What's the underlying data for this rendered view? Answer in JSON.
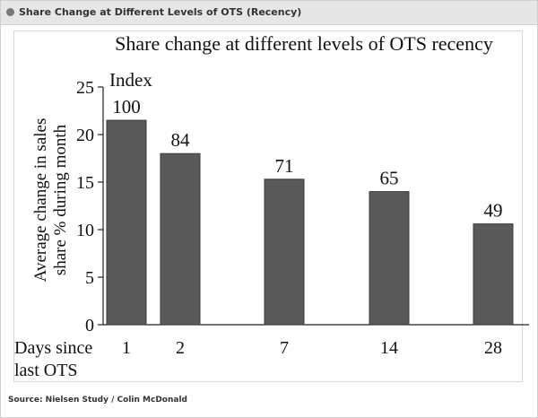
{
  "header": {
    "title": "Share Change at Different Levels of OTS (Recency)"
  },
  "footer": {
    "source": "Source: Nielsen Study / Colin McDonald"
  },
  "chart_data": {
    "type": "bar",
    "title": "Share change at different levels of OTS recency",
    "ylabel": "Average change in sales share % during month",
    "xlabel": "Days since last OTS",
    "ylim": [
      0,
      25
    ],
    "yticks": [
      0,
      5,
      10,
      15,
      20,
      25
    ],
    "index_label": "Index",
    "categories": [
      "1",
      "2",
      "7",
      "14",
      "28"
    ],
    "values": [
      21.5,
      18.0,
      15.3,
      14.0,
      10.6
    ],
    "data_labels": [
      "100",
      "84",
      "71",
      "65",
      "49"
    ],
    "bar_color": "#595959"
  }
}
